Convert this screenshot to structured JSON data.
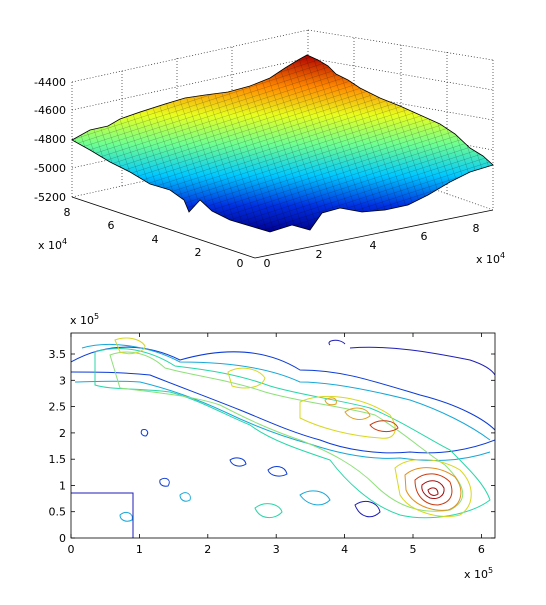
{
  "chart_data": [
    {
      "type": "surface",
      "x_tick_labels": [
        "2",
        "4",
        "6",
        "8"
      ],
      "x_multiplier": "x 10",
      "x_multiplier_exp": "4",
      "y_tick_labels": [
        "0",
        "2",
        "4",
        "6",
        "8"
      ],
      "y_multiplier": "x 10",
      "y_multiplier_exp": "4",
      "z_tick_labels": [
        "-5200",
        "-5000",
        "-4800",
        "-4600",
        "-4400"
      ],
      "zlim": [
        -5200,
        -4400
      ],
      "grid": true,
      "colormap": [
        "#00008f",
        "#0050ff",
        "#00ffff",
        "#80ff80",
        "#ffff00",
        "#ff8000",
        "#a00000"
      ]
    },
    {
      "type": "contour",
      "x_tick_labels": [
        "0",
        "1",
        "2",
        "3",
        "4",
        "5",
        "6"
      ],
      "x_multiplier": "x 10",
      "x_multiplier_exp": "5",
      "xlim": [
        0,
        6.2
      ],
      "y_tick_labels": [
        "0",
        "0.5",
        "1",
        "1.5",
        "2",
        "2.5",
        "3",
        "3.5"
      ],
      "y_multiplier": "x 10",
      "y_multiplier_exp": "5",
      "ylim": [
        0,
        3.9
      ],
      "grid": false
    }
  ]
}
